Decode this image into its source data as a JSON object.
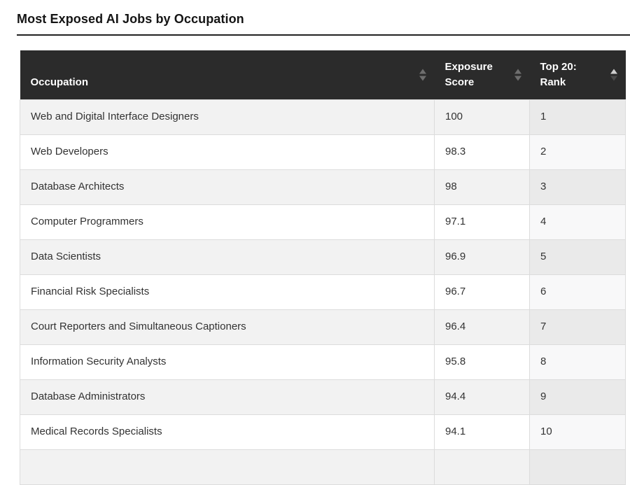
{
  "page": {
    "title": "Most Exposed AI Jobs by Occupation"
  },
  "chart_data": {
    "type": "table",
    "title": "Most Exposed AI Jobs by Occupation",
    "columns": [
      {
        "label": "Occupation",
        "sort": "none"
      },
      {
        "label": "Exposure Score",
        "sort": "none"
      },
      {
        "label": "Top 20: Rank",
        "sort": "asc"
      }
    ],
    "rows": [
      {
        "occupation": "Web and Digital Interface Designers",
        "exposure_score": "100",
        "rank": "1"
      },
      {
        "occupation": "Web Developers",
        "exposure_score": "98.3",
        "rank": "2"
      },
      {
        "occupation": "Database Architects",
        "exposure_score": "98",
        "rank": "3"
      },
      {
        "occupation": "Computer Programmers",
        "exposure_score": "97.1",
        "rank": "4"
      },
      {
        "occupation": "Data Scientists",
        "exposure_score": "96.9",
        "rank": "5"
      },
      {
        "occupation": "Financial Risk Specialists",
        "exposure_score": "96.7",
        "rank": "6"
      },
      {
        "occupation": "Court Reporters and Simultaneous Captioners",
        "exposure_score": "96.4",
        "rank": "7"
      },
      {
        "occupation": "Information Security Analysts",
        "exposure_score": "95.8",
        "rank": "8"
      },
      {
        "occupation": "Database Administrators",
        "exposure_score": "94.4",
        "rank": "9"
      },
      {
        "occupation": "Medical Records Specialists",
        "exposure_score": "94.1",
        "rank": "10"
      }
    ],
    "layout": {
      "striped": true,
      "sorted_column_shaded": true,
      "partial_row_visible_at_bottom": true
    }
  },
  "colors": {
    "header_bg": "#2b2b2b",
    "header_text": "#ffffff",
    "row_stripe": "#f2f2f2",
    "row_stripe_sorted": "#eaeaea",
    "row_white": "#ffffff",
    "row_white_sorted": "#f8f8f9",
    "border": "#dcdcdc",
    "cell_text": "#333333",
    "title_text": "#141414",
    "rule": "#222222",
    "arrow_inactive": "#6e6e6e",
    "arrow_active": "#cfcfcf",
    "arrow_dim": "#4a4a4a"
  }
}
